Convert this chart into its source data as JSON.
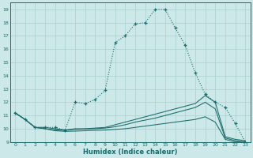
{
  "xlabel": "Humidex (Indice chaleur)",
  "ylabel": "",
  "bg_color": "#cce8e8",
  "line_color": "#1a6b6b",
  "grid_color": "#aacfcf",
  "xlim": [
    -0.5,
    23.5
  ],
  "ylim": [
    9,
    19.5
  ],
  "xticks": [
    0,
    1,
    2,
    3,
    4,
    5,
    6,
    7,
    8,
    9,
    10,
    11,
    12,
    13,
    14,
    15,
    16,
    17,
    18,
    19,
    20,
    21,
    22,
    23
  ],
  "yticks": [
    9,
    10,
    11,
    12,
    13,
    14,
    15,
    16,
    17,
    18,
    19
  ],
  "line1_x": [
    0,
    1,
    2,
    3,
    4,
    5,
    6,
    7,
    8,
    9,
    10,
    11,
    12,
    13,
    14,
    15,
    16,
    17,
    18,
    19,
    20,
    21,
    22,
    23
  ],
  "line1_y": [
    11.2,
    10.7,
    10.1,
    10.1,
    10.1,
    9.9,
    12.0,
    11.9,
    12.2,
    12.9,
    16.5,
    17.0,
    17.9,
    18.0,
    19.0,
    19.0,
    17.6,
    16.3,
    14.2,
    12.6,
    12.0,
    11.6,
    10.4,
    9.0
  ],
  "line2_x": [
    0,
    1,
    2,
    3,
    4,
    5,
    6,
    7,
    8,
    9,
    10,
    11,
    12,
    13,
    14,
    15,
    16,
    17,
    18,
    19,
    20,
    21,
    22,
    23
  ],
  "line2_y": [
    11.2,
    10.7,
    10.1,
    10.1,
    10.0,
    9.9,
    10.0,
    10.0,
    10.05,
    10.1,
    10.3,
    10.5,
    10.7,
    10.9,
    11.1,
    11.3,
    11.5,
    11.7,
    11.9,
    12.5,
    12.0,
    9.4,
    9.2,
    9.1
  ],
  "line3_x": [
    0,
    1,
    2,
    3,
    4,
    5,
    6,
    7,
    8,
    9,
    10,
    11,
    12,
    13,
    14,
    15,
    16,
    17,
    18,
    19,
    20,
    21,
    22,
    23
  ],
  "line3_y": [
    11.2,
    10.7,
    10.1,
    10.0,
    9.9,
    9.9,
    9.95,
    9.98,
    10.0,
    10.05,
    10.15,
    10.3,
    10.5,
    10.65,
    10.8,
    11.0,
    11.2,
    11.4,
    11.6,
    12.0,
    11.5,
    9.3,
    9.1,
    9.0
  ],
  "line4_x": [
    0,
    1,
    2,
    3,
    4,
    5,
    6,
    7,
    8,
    9,
    10,
    11,
    12,
    13,
    14,
    15,
    16,
    17,
    18,
    19,
    20,
    21,
    22,
    23
  ],
  "line4_y": [
    11.2,
    10.7,
    10.1,
    10.0,
    9.85,
    9.8,
    9.82,
    9.85,
    9.88,
    9.9,
    9.95,
    10.0,
    10.1,
    10.2,
    10.3,
    10.4,
    10.5,
    10.6,
    10.7,
    10.9,
    10.5,
    9.2,
    9.0,
    9.0
  ]
}
